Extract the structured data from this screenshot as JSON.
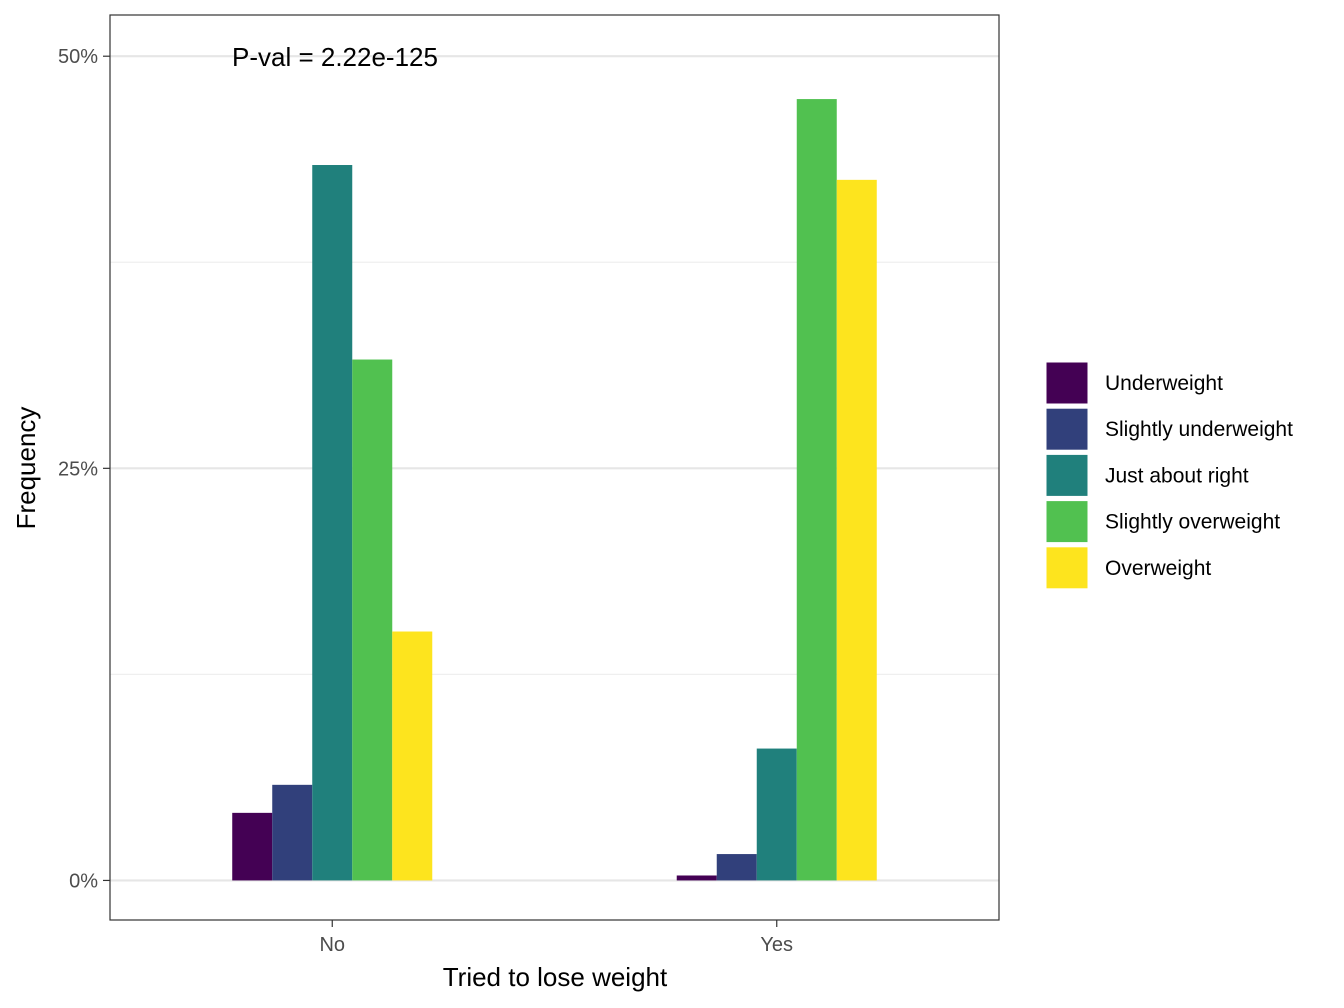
{
  "chart_data": {
    "type": "bar",
    "title": "",
    "annotation": "P-val = 2.22e-125",
    "xlabel": "Tried to lose weight",
    "ylabel": "Frequency",
    "categories": [
      "No",
      "Yes"
    ],
    "ylim": [
      -0.024,
      0.525
    ],
    "yticks": [
      0,
      0.25,
      0.5
    ],
    "ytick_labels": [
      "0%",
      "25%",
      "50%"
    ],
    "grid": true,
    "legend_position": "right",
    "series": [
      {
        "name": "Underweight",
        "color": "#440154",
        "values": [
          0.041,
          0.003
        ]
      },
      {
        "name": "Slightly underweight",
        "color": "#31407b",
        "values": [
          0.058,
          0.016
        ]
      },
      {
        "name": "Just about right",
        "color": "#20807c",
        "values": [
          0.434,
          0.08
        ]
      },
      {
        "name": "Slightly overweight",
        "color": "#51c150",
        "values": [
          0.316,
          0.474
        ]
      },
      {
        "name": "Overweight",
        "color": "#fde41e",
        "values": [
          0.151,
          0.425
        ]
      }
    ]
  }
}
